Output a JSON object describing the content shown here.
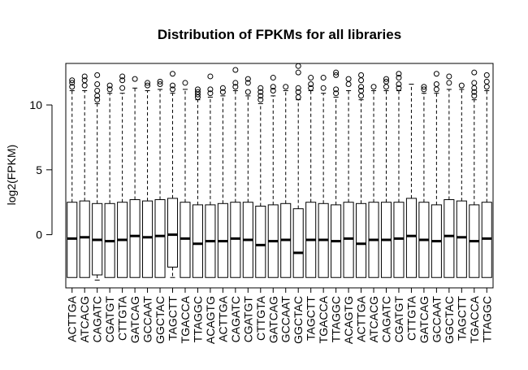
{
  "chart_data": {
    "type": "boxplot",
    "title": "Distribution of FPKMs for all libraries",
    "xlabel": "",
    "ylabel": "log2(FPKM)",
    "ylim": [
      -4.1,
      13.2
    ],
    "yticks": [
      0,
      5,
      10
    ],
    "ytick_labels": [
      "0",
      "5",
      "10"
    ],
    "grid": false,
    "legend": "none",
    "categories": [
      "ACTTGA",
      "ATCACG",
      "CAGATC",
      "CGATGT",
      "CTTGTA",
      "GATCAG",
      "GCCAAT",
      "GGCTAC",
      "TAGCTT",
      "TGACCA",
      "TTAGGC",
      "ACAGTG",
      "ACTTGA",
      "CAGATC",
      "CGATGT",
      "CTTGTA",
      "GATCAG",
      "GCCAAT",
      "GGCTAC",
      "TAGCTT",
      "TGACCA",
      "TTAGGC",
      "ACAGTG",
      "ACTTGA",
      "ATCACG",
      "CAGATC",
      "CGATGT",
      "CTTGTA",
      "GATCAG",
      "GCCAAT",
      "GGCTAC",
      "TAGCTT",
      "TGACCA",
      "TTAGGC"
    ],
    "boxes": [
      {
        "lo": -3.3,
        "q1": -3.3,
        "median": -0.3,
        "q3": 2.5,
        "hi": 11.1,
        "outliers": [
          11.4,
          11.7,
          11.9
        ]
      },
      {
        "lo": -3.3,
        "q1": -3.3,
        "median": -0.2,
        "q3": 2.6,
        "hi": 11.1,
        "outliers": [
          11.5,
          11.9,
          12.2
        ]
      },
      {
        "lo": -3.5,
        "q1": -3.1,
        "median": -0.4,
        "q3": 2.4,
        "hi": 10.1,
        "outliers": [
          10.4,
          10.7,
          11.1,
          11.6,
          12.3
        ]
      },
      {
        "lo": -3.3,
        "q1": -3.3,
        "median": -0.5,
        "q3": 2.4,
        "hi": 10.9,
        "outliers": [
          11.2,
          11.5
        ]
      },
      {
        "lo": -3.3,
        "q1": -3.3,
        "median": -0.4,
        "q3": 2.5,
        "hi": 10.9,
        "outliers": [
          11.3,
          11.9,
          12.2
        ]
      },
      {
        "lo": -3.3,
        "q1": -3.3,
        "median": -0.1,
        "q3": 2.7,
        "hi": 11.3,
        "outliers": [
          12.0
        ]
      },
      {
        "lo": -3.3,
        "q1": -3.3,
        "median": -0.2,
        "q3": 2.6,
        "hi": 11.1,
        "outliers": [
          11.5,
          11.7
        ]
      },
      {
        "lo": -3.3,
        "q1": -3.3,
        "median": -0.1,
        "q3": 2.7,
        "hi": 11.2,
        "outliers": [
          11.6,
          11.8
        ]
      },
      {
        "lo": -3.3,
        "q1": -2.5,
        "median": 0.0,
        "q3": 2.8,
        "hi": 10.9,
        "outliers": [
          11.2,
          11.5,
          12.4
        ]
      },
      {
        "lo": -3.3,
        "q1": -3.3,
        "median": -0.3,
        "q3": 2.5,
        "hi": 11.2,
        "outliers": [
          11.7
        ]
      },
      {
        "lo": -3.3,
        "q1": -3.3,
        "median": -0.7,
        "q3": 2.3,
        "hi": 10.4,
        "outliers": [
          10.6,
          10.8,
          11.0,
          11.2
        ]
      },
      {
        "lo": -3.3,
        "q1": -3.3,
        "median": -0.5,
        "q3": 2.3,
        "hi": 10.6,
        "outliers": [
          10.9,
          11.2,
          12.2
        ]
      },
      {
        "lo": -3.3,
        "q1": -3.3,
        "median": -0.5,
        "q3": 2.4,
        "hi": 10.7,
        "outliers": [
          11.0,
          11.3
        ]
      },
      {
        "lo": -3.3,
        "q1": -3.3,
        "median": -0.3,
        "q3": 2.5,
        "hi": 11.1,
        "outliers": [
          11.4,
          11.7,
          12.7
        ]
      },
      {
        "lo": -3.3,
        "q1": -3.3,
        "median": -0.4,
        "q3": 2.5,
        "hi": 10.7,
        "outliers": [
          11.0,
          11.7,
          12.0
        ]
      },
      {
        "lo": -3.3,
        "q1": -3.3,
        "median": -0.8,
        "q3": 2.2,
        "hi": 10.1,
        "outliers": [
          10.4,
          10.7,
          11.0,
          11.3
        ]
      },
      {
        "lo": -3.3,
        "q1": -3.3,
        "median": -0.5,
        "q3": 2.3,
        "hi": 10.7,
        "outliers": [
          11.1,
          11.4,
          12.1
        ]
      },
      {
        "lo": -3.3,
        "q1": -3.3,
        "median": -0.4,
        "q3": 2.4,
        "hi": 11.1,
        "outliers": [
          11.4
        ]
      },
      {
        "lo": -3.3,
        "q1": -3.3,
        "median": -1.4,
        "q3": 2.0,
        "hi": 10.4,
        "outliers": [
          10.6,
          11.0,
          11.3,
          12.5,
          13.0
        ]
      },
      {
        "lo": -3.3,
        "q1": -3.3,
        "median": -0.4,
        "q3": 2.5,
        "hi": 11.1,
        "outliers": [
          11.3,
          11.6,
          12.1
        ]
      },
      {
        "lo": -3.3,
        "q1": -3.3,
        "median": -0.4,
        "q3": 2.4,
        "hi": 10.9,
        "outliers": [
          11.3,
          12.1
        ]
      },
      {
        "lo": -3.3,
        "q1": -3.3,
        "median": -0.5,
        "q3": 2.3,
        "hi": 10.6,
        "outliers": [
          10.9,
          11.2,
          12.3,
          12.5
        ]
      },
      {
        "lo": -3.3,
        "q1": -3.3,
        "median": -0.3,
        "q3": 2.5,
        "hi": 11.1,
        "outliers": [
          11.6,
          12.0
        ]
      },
      {
        "lo": -3.3,
        "q1": -3.3,
        "median": -0.7,
        "q3": 2.4,
        "hi": 10.4,
        "outliers": [
          10.7,
          11.1,
          11.4,
          11.9,
          12.3
        ]
      },
      {
        "lo": -3.3,
        "q1": -3.3,
        "median": -0.4,
        "q3": 2.5,
        "hi": 11.1,
        "outliers": [
          11.4
        ]
      },
      {
        "lo": -3.3,
        "q1": -3.3,
        "median": -0.4,
        "q3": 2.5,
        "hi": 11.1,
        "outliers": [
          11.4,
          11.8,
          12.0
        ]
      },
      {
        "lo": -3.3,
        "q1": -3.3,
        "median": -0.3,
        "q3": 2.5,
        "hi": 11.1,
        "outliers": [
          11.3,
          11.6,
          12.1,
          12.4
        ]
      },
      {
        "lo": -3.3,
        "q1": -3.3,
        "median": -0.1,
        "q3": 2.8,
        "hi": 11.6,
        "outliers": []
      },
      {
        "lo": -3.3,
        "q1": -3.3,
        "median": -0.4,
        "q3": 2.5,
        "hi": 10.9,
        "outliers": [
          11.2,
          11.4
        ]
      },
      {
        "lo": -3.3,
        "q1": -3.3,
        "median": -0.5,
        "q3": 2.3,
        "hi": 10.9,
        "outliers": [
          11.2,
          11.6,
          12.4
        ]
      },
      {
        "lo": -3.3,
        "q1": -3.3,
        "median": -0.1,
        "q3": 2.7,
        "hi": 11.2,
        "outliers": [
          11.7,
          12.2
        ]
      },
      {
        "lo": -3.3,
        "q1": -3.3,
        "median": -0.2,
        "q3": 2.6,
        "hi": 11.2,
        "outliers": [
          11.5
        ]
      },
      {
        "lo": -3.3,
        "q1": -3.3,
        "median": -0.5,
        "q3": 2.3,
        "hi": 10.4,
        "outliers": [
          10.7,
          11.0,
          11.3,
          11.7,
          12.5
        ]
      },
      {
        "lo": -3.3,
        "q1": -3.3,
        "median": -0.3,
        "q3": 2.5,
        "hi": 11.1,
        "outliers": [
          11.4,
          11.8,
          12.3
        ]
      }
    ]
  }
}
